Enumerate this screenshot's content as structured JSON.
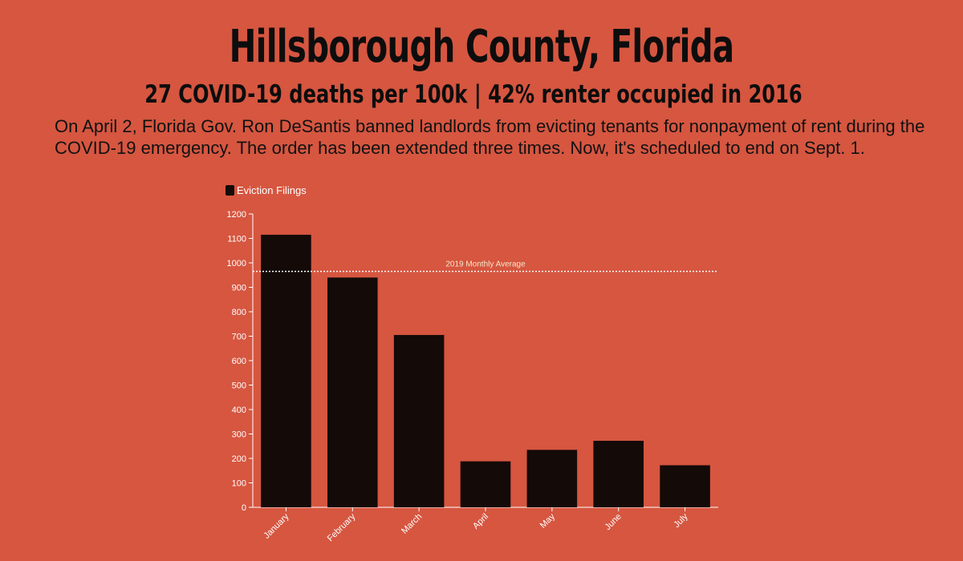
{
  "header": {
    "title": "Hillsborough County, Florida",
    "subtitle": "27 COVID-19 deaths per 100k | 42% renter occupied in 2016",
    "description": "On April 2, Florida Gov. Ron DeSantis banned landlords from evicting tenants for nonpayment of rent during the COVID-19 emergency. The order has been extended three times. Now, it's scheduled to end on Sept. 1."
  },
  "colors": {
    "background": "#d65640",
    "bar": "#140a08",
    "axis": "#ffffff",
    "reference_line": "#ffffff",
    "reference_label": "#f5e6c8"
  },
  "chart_data": {
    "type": "bar",
    "categories": [
      "January",
      "February",
      "March",
      "April",
      "May",
      "June",
      "July"
    ],
    "series": [
      {
        "name": "Eviction Filings",
        "values": [
          1115,
          940,
          705,
          188,
          235,
          272,
          172
        ]
      }
    ],
    "ylim": [
      0,
      1200
    ],
    "yticks": [
      0,
      100,
      200,
      300,
      400,
      500,
      600,
      700,
      800,
      900,
      1000,
      1100,
      1200
    ],
    "reference_line": {
      "label": "2019 Monthly Average",
      "value": 965
    },
    "legend": {
      "position": "top-left",
      "label": "Eviction Filings"
    },
    "grid": false
  }
}
